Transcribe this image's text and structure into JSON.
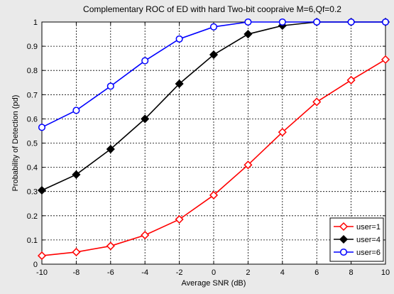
{
  "chart_data": {
    "type": "line",
    "title": "Complementary ROC of ED with hard Two-bit coopraive M=6,Qf=0.2",
    "xlabel": "Average SNR (dB)",
    "ylabel": "Probability of Detection (pd)",
    "xlim": [
      -10,
      10
    ],
    "ylim": [
      0,
      1
    ],
    "xticks": [
      -10,
      -8,
      -6,
      -4,
      -2,
      0,
      2,
      4,
      6,
      8,
      10
    ],
    "yticks": [
      0,
      0.1,
      0.2,
      0.3,
      0.4,
      0.5,
      0.6,
      0.7,
      0.8,
      0.9,
      1
    ],
    "grid": true,
    "legend_position": "bottom-right",
    "x": [
      -10,
      -8,
      -6,
      -4,
      -2,
      0,
      2,
      4,
      6,
      8,
      10
    ],
    "series": [
      {
        "name": "user=1",
        "color": "#ff0000",
        "marker": "diamond-open",
        "values": [
          0.035,
          0.05,
          0.075,
          0.12,
          0.185,
          0.285,
          0.41,
          0.545,
          0.67,
          0.76,
          0.845
        ]
      },
      {
        "name": "user=4",
        "color": "#000000",
        "marker": "diamond-filled",
        "values": [
          0.305,
          0.37,
          0.475,
          0.6,
          0.745,
          0.865,
          0.95,
          0.985,
          1.0,
          1.0,
          1.0
        ]
      },
      {
        "name": "user=6",
        "color": "#0000ff",
        "marker": "circle-open",
        "values": [
          0.565,
          0.635,
          0.735,
          0.84,
          0.93,
          0.98,
          1.0,
          1.0,
          1.0,
          1.0,
          1.0
        ]
      }
    ]
  }
}
